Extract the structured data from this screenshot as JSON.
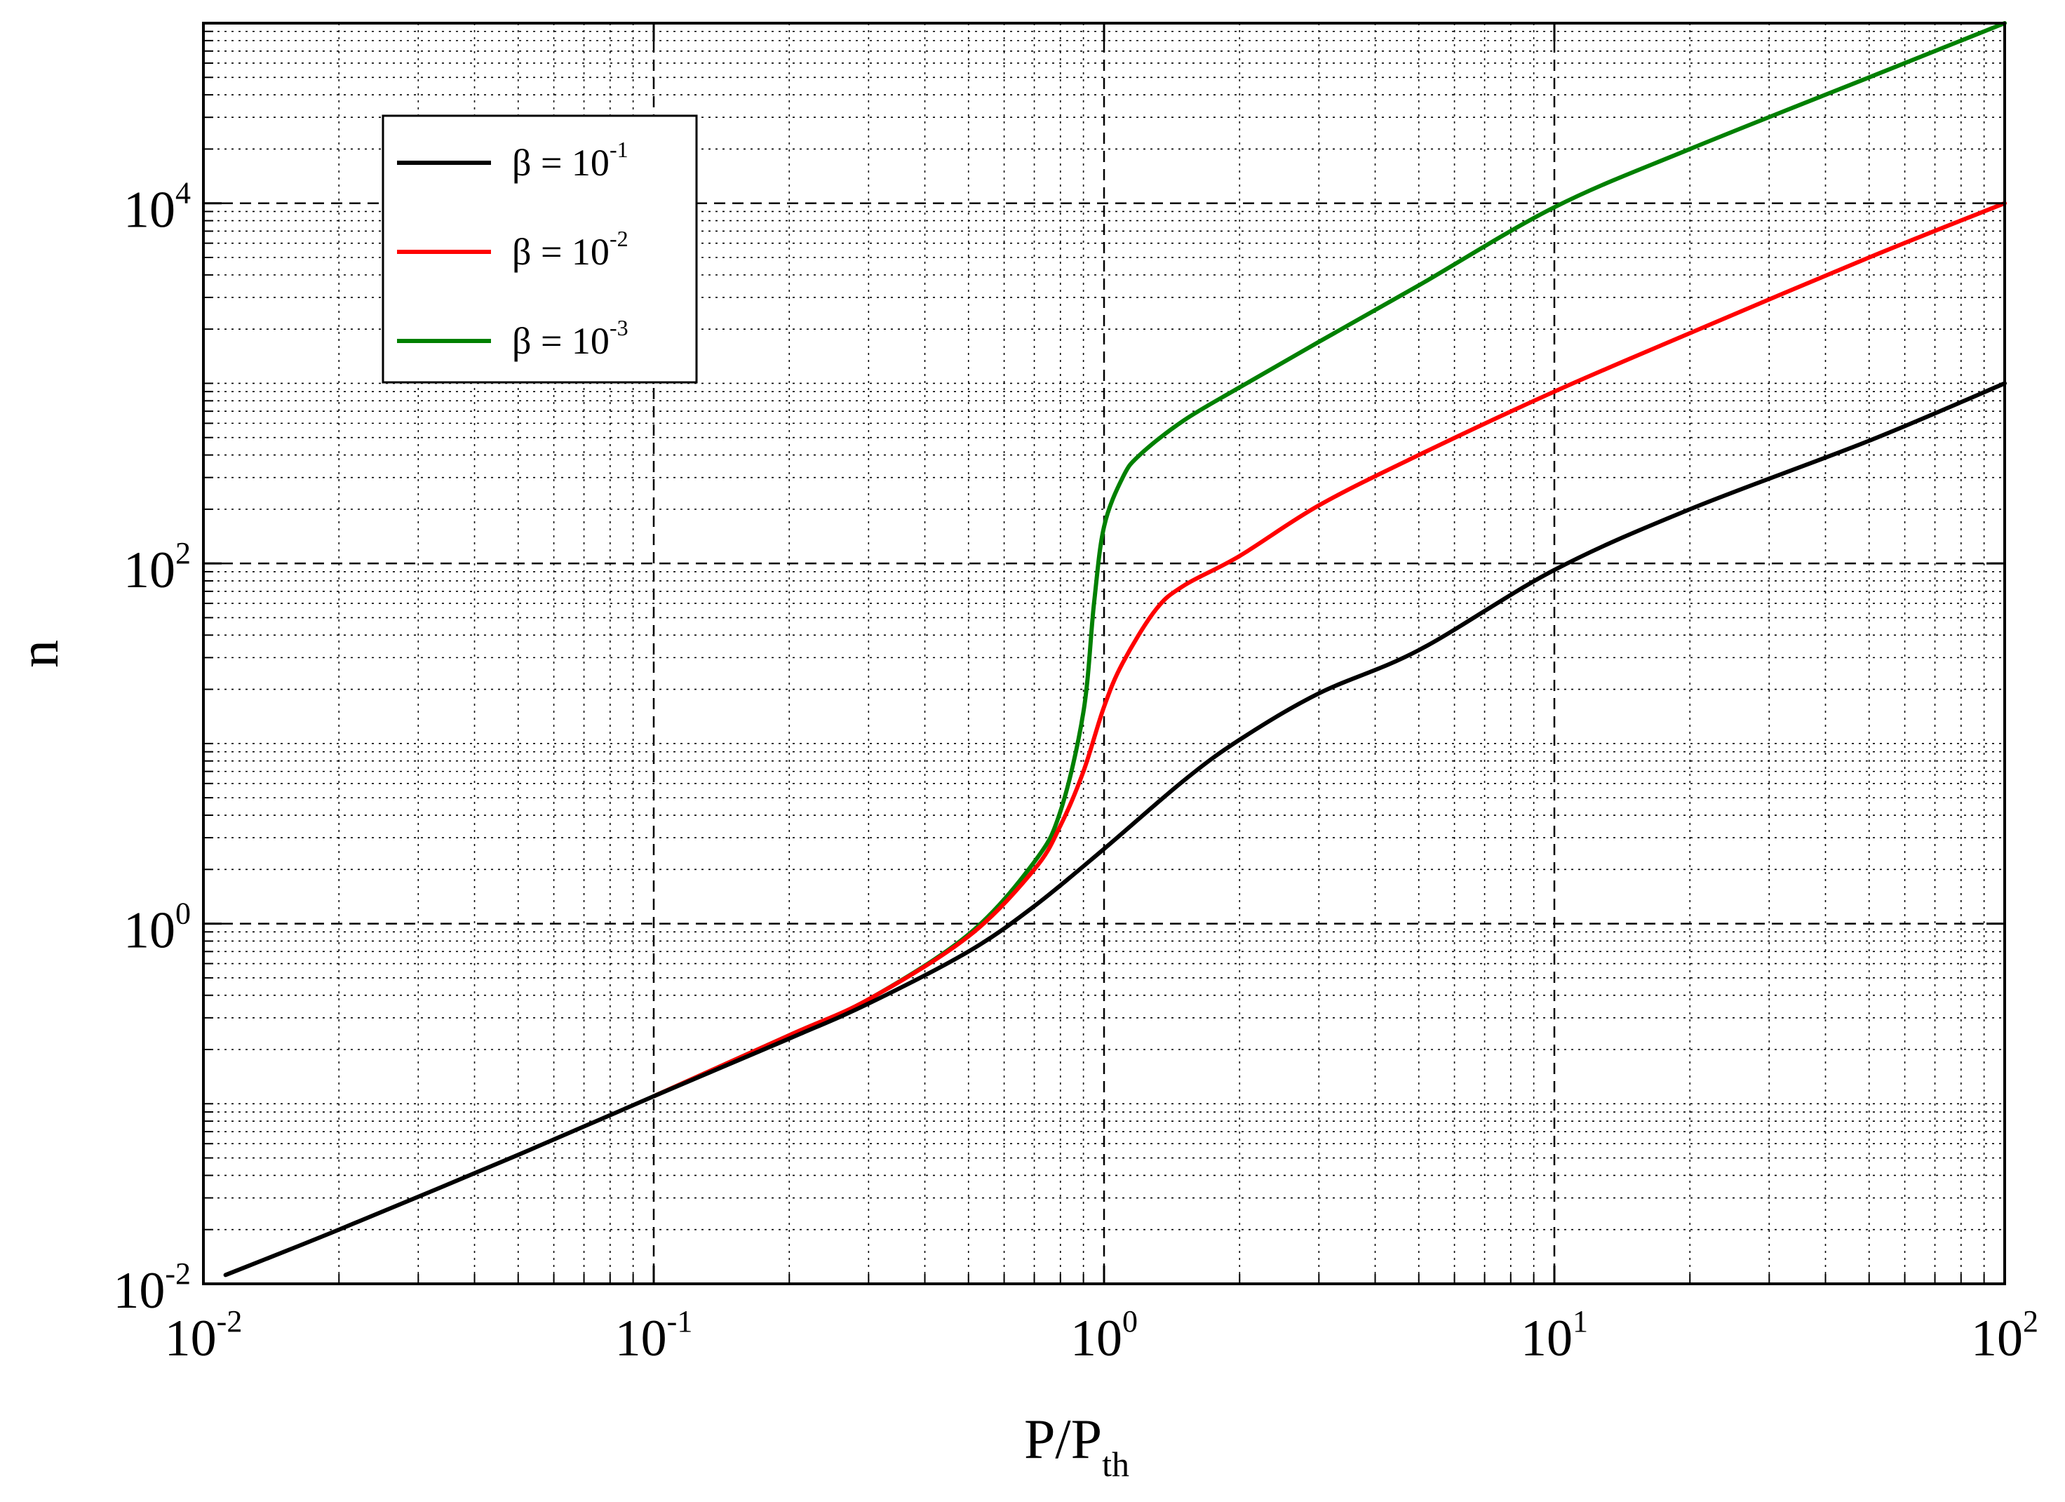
{
  "chart_data": {
    "type": "line",
    "xlabel": "P/P",
    "xlabel_sub": "th",
    "ylabel": "n",
    "x_scale": "log",
    "y_scale": "log",
    "xlim": [
      0.01,
      100
    ],
    "ylim": [
      0.01,
      100000
    ],
    "grid": true,
    "legend_position": "top-left",
    "x_ticks": [
      {
        "value": 0.01,
        "base": "10",
        "exp": "-2"
      },
      {
        "value": 0.1,
        "base": "10",
        "exp": "-1"
      },
      {
        "value": 1,
        "base": "10",
        "exp": "0"
      },
      {
        "value": 10,
        "base": "10",
        "exp": "1"
      },
      {
        "value": 100,
        "base": "10",
        "exp": "2"
      }
    ],
    "y_ticks": [
      {
        "value": 0.01,
        "base": "10",
        "exp": "-2"
      },
      {
        "value": 1,
        "base": "10",
        "exp": "0"
      },
      {
        "value": 100,
        "base": "10",
        "exp": "2"
      },
      {
        "value": 10000,
        "base": "10",
        "exp": "4"
      }
    ],
    "series": [
      {
        "name": "β = 10",
        "name_sup": "-1",
        "color": "#000000",
        "x": [
          0.0112,
          0.02,
          0.05,
          0.1,
          0.2,
          0.3,
          0.5,
          0.7,
          1.0,
          1.5,
          2.0,
          3.0,
          5.0,
          10,
          20,
          50,
          100
        ],
        "y": [
          0.0112,
          0.02,
          0.052,
          0.11,
          0.23,
          0.36,
          0.7,
          1.25,
          2.6,
          6.2,
          10.5,
          19,
          33,
          92,
          200,
          480,
          1000
        ]
      },
      {
        "name": "β = 10",
        "name_sup": "-2",
        "color": "#ff0000",
        "x": [
          0.1,
          0.2,
          0.3,
          0.5,
          0.7,
          0.8,
          0.9,
          1.0,
          1.1,
          1.3,
          1.5,
          2.0,
          3.0,
          5.0,
          10,
          20,
          50,
          100
        ],
        "y": [
          0.11,
          0.24,
          0.38,
          0.85,
          2.0,
          3.5,
          7.0,
          16,
          28,
          55,
          75,
          110,
          210,
          400,
          900,
          1900,
          5000,
          10000
        ]
      },
      {
        "name": "β = 10",
        "name_sup": "-3",
        "color": "#008000",
        "x": [
          0.1,
          0.2,
          0.3,
          0.5,
          0.7,
          0.8,
          0.9,
          0.95,
          1.0,
          1.1,
          1.2,
          1.5,
          2.0,
          3.0,
          5.0,
          10,
          20,
          50,
          100
        ],
        "y": [
          0.11,
          0.24,
          0.38,
          0.87,
          2.2,
          4.2,
          15,
          60,
          160,
          300,
          400,
          620,
          950,
          1700,
          3500,
          9500,
          20000,
          50000,
          100000
        ]
      }
    ]
  }
}
